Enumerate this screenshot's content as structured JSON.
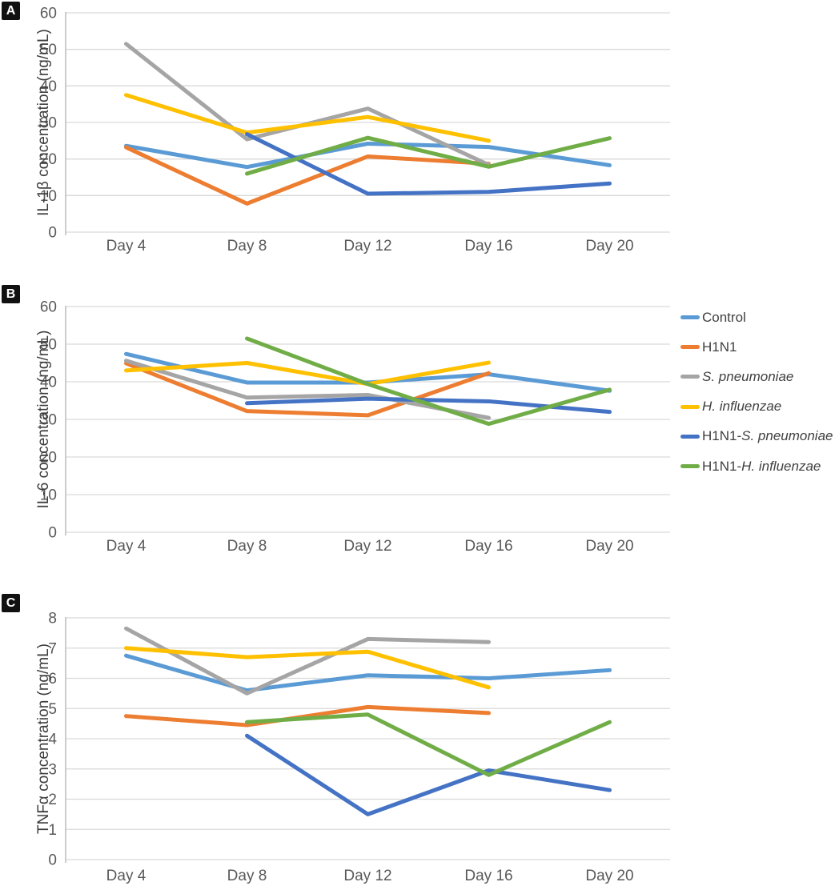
{
  "figure": {
    "panels": [
      {
        "label": "A",
        "y_title": "IL-1β concentration (ng/mL)"
      },
      {
        "label": "B",
        "y_title": "IL-6 concentration (ng/mL)"
      },
      {
        "label": "C",
        "y_title": "TNFα concentration (ng/mL)"
      }
    ]
  },
  "chart_data": [
    {
      "type": "line",
      "panel": "A",
      "title": "",
      "xlabel": "",
      "ylabel": "IL-1β concentration (ng/mL)",
      "categories": [
        "Day 4",
        "Day 8",
        "Day 12",
        "Day 16",
        "Day 20"
      ],
      "ylim": [
        0,
        60
      ],
      "ytick_step": 10,
      "grid": true,
      "series": [
        {
          "name": "Control",
          "color": "#5B9BD5",
          "values": [
            23.6,
            17.8,
            24.2,
            23.3,
            18.3
          ]
        },
        {
          "name": "H1N1",
          "color": "#ED7D31",
          "values": [
            23.2,
            7.8,
            20.7,
            18.7,
            null
          ]
        },
        {
          "name": "S. pneumoniae",
          "color": "#A5A5A5",
          "values": [
            51.5,
            25.4,
            33.8,
            18.4,
            null
          ]
        },
        {
          "name": "H. influenzae",
          "color": "#FFC000",
          "values": [
            37.5,
            27.2,
            31.5,
            25.0,
            null
          ]
        },
        {
          "name": "H1N1-S. pneumoniae",
          "color": "#4472C4",
          "values": [
            null,
            26.8,
            10.5,
            11.0,
            13.3
          ]
        },
        {
          "name": "H1N1-H. influenzae",
          "color": "#70AD47",
          "values": [
            null,
            16.0,
            25.8,
            17.9,
            25.7
          ]
        }
      ]
    },
    {
      "type": "line",
      "panel": "B",
      "title": "",
      "xlabel": "",
      "ylabel": "IL-6 concentration (ng/mL)",
      "categories": [
        "Day 4",
        "Day 8",
        "Day 12",
        "Day 16",
        "Day 20"
      ],
      "ylim": [
        0,
        60
      ],
      "ytick_step": 10,
      "grid": true,
      "series": [
        {
          "name": "Control",
          "color": "#5B9BD5",
          "values": [
            47.4,
            39.8,
            39.8,
            42.0,
            37.6
          ]
        },
        {
          "name": "H1N1",
          "color": "#ED7D31",
          "values": [
            44.9,
            32.2,
            31.1,
            42.3,
            null
          ]
        },
        {
          "name": "S. pneumoniae",
          "color": "#A5A5A5",
          "values": [
            45.6,
            35.8,
            36.5,
            30.4,
            null
          ]
        },
        {
          "name": "H. influenzae",
          "color": "#FFC000",
          "values": [
            43.0,
            45.0,
            39.4,
            45.1,
            null
          ]
        },
        {
          "name": "H1N1-S. pneumoniae",
          "color": "#4472C4",
          "values": [
            null,
            34.3,
            35.5,
            34.8,
            32.0
          ]
        },
        {
          "name": "H1N1-H. influenzae",
          "color": "#70AD47",
          "values": [
            null,
            51.5,
            39.4,
            28.8,
            37.9
          ]
        }
      ]
    },
    {
      "type": "line",
      "panel": "C",
      "title": "",
      "xlabel": "",
      "ylabel": "TNFα concentration (ng/mL)",
      "categories": [
        "Day 4",
        "Day 8",
        "Day 12",
        "Day 16",
        "Day 20"
      ],
      "ylim": [
        0,
        8
      ],
      "ytick_step": 1,
      "grid": true,
      "series": [
        {
          "name": "Control",
          "color": "#5B9BD5",
          "values": [
            6.75,
            5.6,
            6.1,
            6.0,
            6.27
          ]
        },
        {
          "name": "H1N1",
          "color": "#ED7D31",
          "values": [
            4.75,
            4.45,
            5.05,
            4.85,
            null
          ]
        },
        {
          "name": "S. pneumoniae",
          "color": "#A5A5A5",
          "values": [
            7.65,
            5.5,
            7.3,
            7.2,
            null
          ]
        },
        {
          "name": "H. influenzae",
          "color": "#FFC000",
          "values": [
            7.0,
            6.7,
            6.88,
            5.7,
            null
          ]
        },
        {
          "name": "H1N1-S. pneumoniae",
          "color": "#4472C4",
          "values": [
            null,
            4.1,
            1.5,
            2.95,
            2.3
          ]
        },
        {
          "name": "H1N1-H. influenzae",
          "color": "#70AD47",
          "values": [
            null,
            4.55,
            4.8,
            2.8,
            4.55
          ]
        }
      ]
    }
  ],
  "legend": {
    "position": "right-middle",
    "items": [
      {
        "key": "control",
        "text": "Control",
        "italic_part": "",
        "color": "#5B9BD5"
      },
      {
        "key": "h1n1",
        "text": "H1N1",
        "italic_part": "",
        "color": "#ED7D31"
      },
      {
        "key": "s-pneumoniae",
        "text": "",
        "italic_part": "S. pneumoniae",
        "color": "#A5A5A5"
      },
      {
        "key": "h-influenzae",
        "text": "",
        "italic_part": "H. influenzae",
        "color": "#FFC000"
      },
      {
        "key": "h1n1-s-pneumoniae",
        "text": "H1N1-",
        "italic_part": "S. pneumoniae",
        "color": "#4472C4"
      },
      {
        "key": "h1n1-h-influenzae",
        "text": "H1N1-",
        "italic_part": "H. influenzae",
        "color": "#70AD47"
      }
    ]
  },
  "style_colors": {
    "gridline": "#D9D9D9",
    "axis_line": "#BFBFBF",
    "tick_text": "#595959",
    "panel_letter_bg": "#111111"
  }
}
